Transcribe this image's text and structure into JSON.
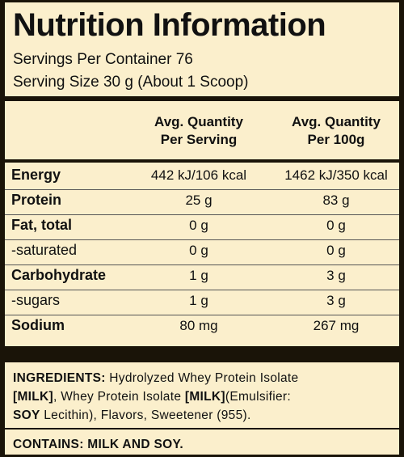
{
  "header": {
    "title": "Nutrition Information",
    "servings": "Servings Per Container 76",
    "serving_size": "Serving Size 30 g (About 1 Scoop)"
  },
  "table": {
    "columns": [
      [
        "Avg. Quantity",
        "Per Serving"
      ],
      [
        "Avg. Quantity",
        "Per 100g"
      ]
    ],
    "rows": [
      {
        "label": "Energy",
        "bold": true,
        "values": [
          "442 kJ/106 kcal",
          "1462 kJ/350 kcal"
        ]
      },
      {
        "label": "Protein",
        "bold": true,
        "values": [
          "25 g",
          "83 g"
        ]
      },
      {
        "label": "Fat, total",
        "bold": true,
        "values": [
          "0 g",
          "0 g"
        ]
      },
      {
        "label": "-saturated",
        "bold": false,
        "values": [
          "0 g",
          "0 g"
        ]
      },
      {
        "label": "Carbohydrate",
        "bold": true,
        "values": [
          "1 g",
          "3 g"
        ]
      },
      {
        "label": "-sugars",
        "bold": false,
        "values": [
          "1 g",
          "3 g"
        ]
      },
      {
        "label": "Sodium",
        "bold": true,
        "values": [
          "80 mg",
          "267 mg"
        ]
      }
    ]
  },
  "ingredients": {
    "lines": [
      [
        {
          "text": "INGREDIENTS:",
          "bold": true
        },
        {
          "text": " Hydrolyzed Whey Protein Isolate",
          "bold": false
        }
      ],
      [
        {
          "text": "[MILK]",
          "bold": true
        },
        {
          "text": ", Whey Protein Isolate ",
          "bold": false
        },
        {
          "text": "[MILK]",
          "bold": true
        },
        {
          "text": "(Emulsifier:",
          "bold": false
        }
      ],
      [
        {
          "text": "SOY",
          "bold": true
        },
        {
          "text": " Lecithin), Flavors, Sweetener (955).",
          "bold": false
        }
      ]
    ],
    "contains": "CONTAINS: MILK AND SOY."
  }
}
